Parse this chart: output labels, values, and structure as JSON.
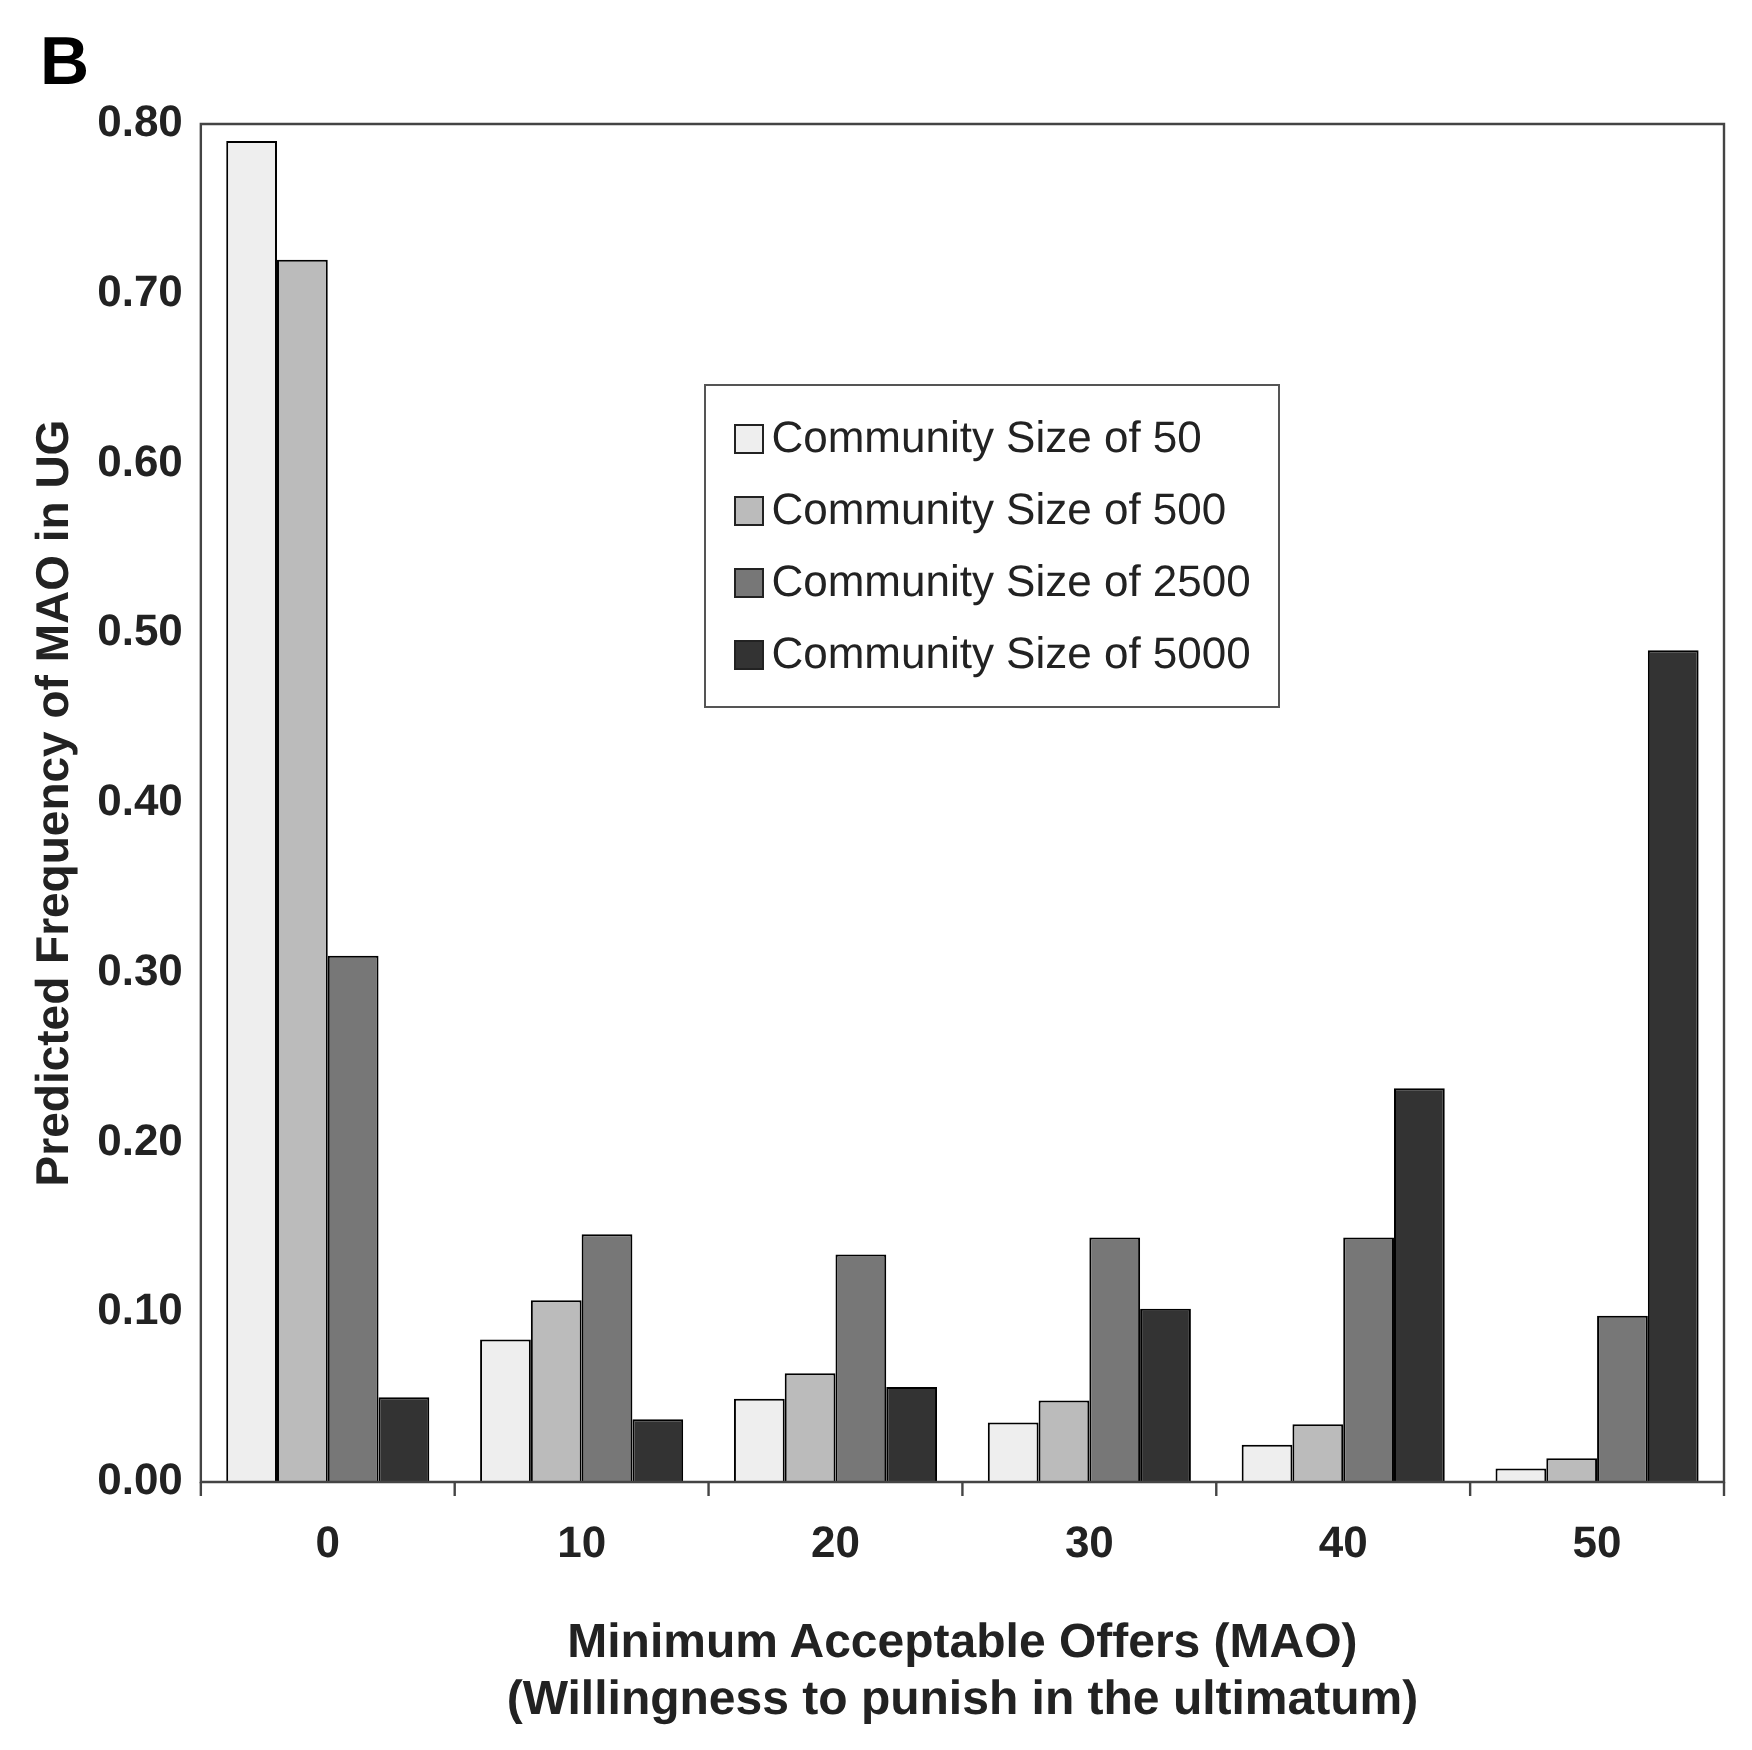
{
  "chart_data": {
    "type": "bar",
    "xlabel": "Minimum Acceptable Offers (MAO)\n(Willingness to punish in the ultimatum)",
    "ylabel": "Predicted Frequency of MAO in UG",
    "annotations": [
      "B"
    ],
    "categories": [
      "0",
      "10",
      "20",
      "30",
      "40",
      "50"
    ],
    "series": [
      {
        "name": "Community Size of 50",
        "color": "#eeeeee",
        "values": [
          0.79,
          0.084,
          0.049,
          0.035,
          0.022,
          0.008
        ]
      },
      {
        "name": "Community Size of 500",
        "color": "#bbbbbb",
        "values": [
          0.72,
          0.107,
          0.064,
          0.048,
          0.034,
          0.014
        ]
      },
      {
        "name": "Community Size of 2500",
        "color": "#777777",
        "values": [
          0.31,
          0.146,
          0.134,
          0.144,
          0.144,
          0.098
        ]
      },
      {
        "name": "Community Size of 5000",
        "color": "#333333",
        "values": [
          0.05,
          0.037,
          0.056,
          0.102,
          0.232,
          0.49
        ]
      }
    ],
    "ylim": [
      0,
      0.8
    ],
    "yticks": [
      {
        "value": 0,
        "label": "0.00"
      },
      {
        "value": 0.1,
        "label": "0.10"
      },
      {
        "value": 0.2,
        "label": "0.20"
      },
      {
        "value": 0.3,
        "label": "0.30"
      },
      {
        "value": 0.4,
        "label": "0.40"
      },
      {
        "value": 0.5,
        "label": "0.50"
      },
      {
        "value": 0.6,
        "label": "0.60"
      },
      {
        "value": 0.7,
        "label": "0.70"
      },
      {
        "value": 0.8,
        "label": "0.80"
      }
    ],
    "grid": false,
    "legend": "top"
  }
}
